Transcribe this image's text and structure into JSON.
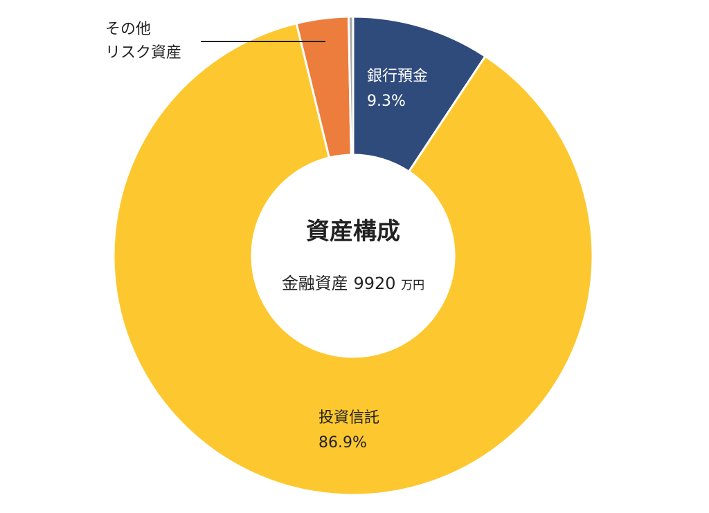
{
  "chart_data": {
    "type": "donut",
    "title": "資産構成",
    "center_label": "金融資産",
    "total": 9920,
    "total_unit": "万円",
    "categories": [
      "銀行預金",
      "投資信託",
      "その他\nリスク資産",
      null
    ],
    "values": [
      9.3,
      86.9,
      3.5,
      0.3
    ],
    "value_labels": [
      "9.3%",
      "86.9%",
      null,
      null
    ],
    "colors": [
      "#2f4b7c",
      "#fdc82f",
      "#ec7d3c",
      "#a6a6a6"
    ]
  }
}
